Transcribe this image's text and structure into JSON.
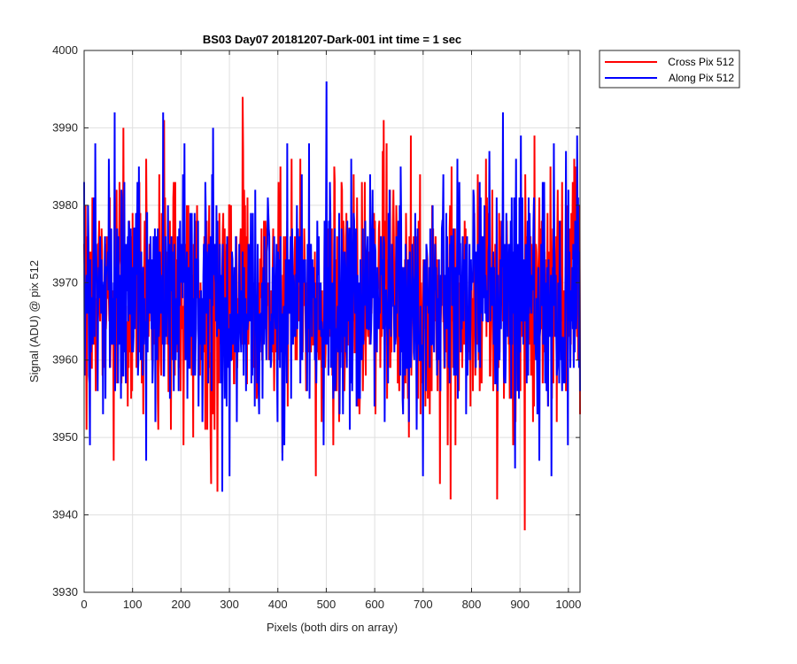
{
  "chart_data": {
    "type": "line",
    "title": "BS03 Day07 20181207-Dark-001 int time = 1 sec",
    "xlabel": "Pixels (both dirs on array)",
    "ylabel": "Signal (ADU) @ pix 512",
    "xlim": [
      0,
      1024
    ],
    "ylim": [
      3930,
      4000
    ],
    "xticks": [
      0,
      100,
      200,
      300,
      400,
      500,
      600,
      700,
      800,
      900,
      1000
    ],
    "yticks": [
      3930,
      3940,
      3950,
      3960,
      3970,
      3980,
      3990,
      4000
    ],
    "grid": true,
    "legend_position": "outside-top-right",
    "series": [
      {
        "name": "Cross Pix 512",
        "color": "#ff0000",
        "mean": 3968,
        "noise_std": 7.5,
        "samples": 1024,
        "x": [
          0,
          128,
          165,
          205,
          262,
          275,
          300,
          327,
          490,
          675,
          735,
          757,
          830,
          910,
          930,
          1024
        ],
        "y": [
          3975,
          3986,
          3991,
          3949,
          3944,
          3943,
          3980,
          3994,
          3952,
          3989,
          3944,
          3942,
          3986,
          3938,
          3989,
          3953
        ]
      },
      {
        "name": "Along Pix 512",
        "color": "#0000ff",
        "mean": 3968,
        "noise_std": 7.2,
        "samples": 1024,
        "x": [
          0,
          12,
          63,
          128,
          163,
          207,
          266,
          285,
          300,
          413,
          413,
          500,
          700,
          865,
          890,
          965,
          1024
        ],
        "y": [
          3983,
          3949,
          3992,
          3947,
          3992,
          3988,
          3990,
          3943,
          3945,
          3993,
          3949,
          3996,
          3945,
          3992,
          3946,
          3945,
          3956
        ]
      }
    ]
  }
}
